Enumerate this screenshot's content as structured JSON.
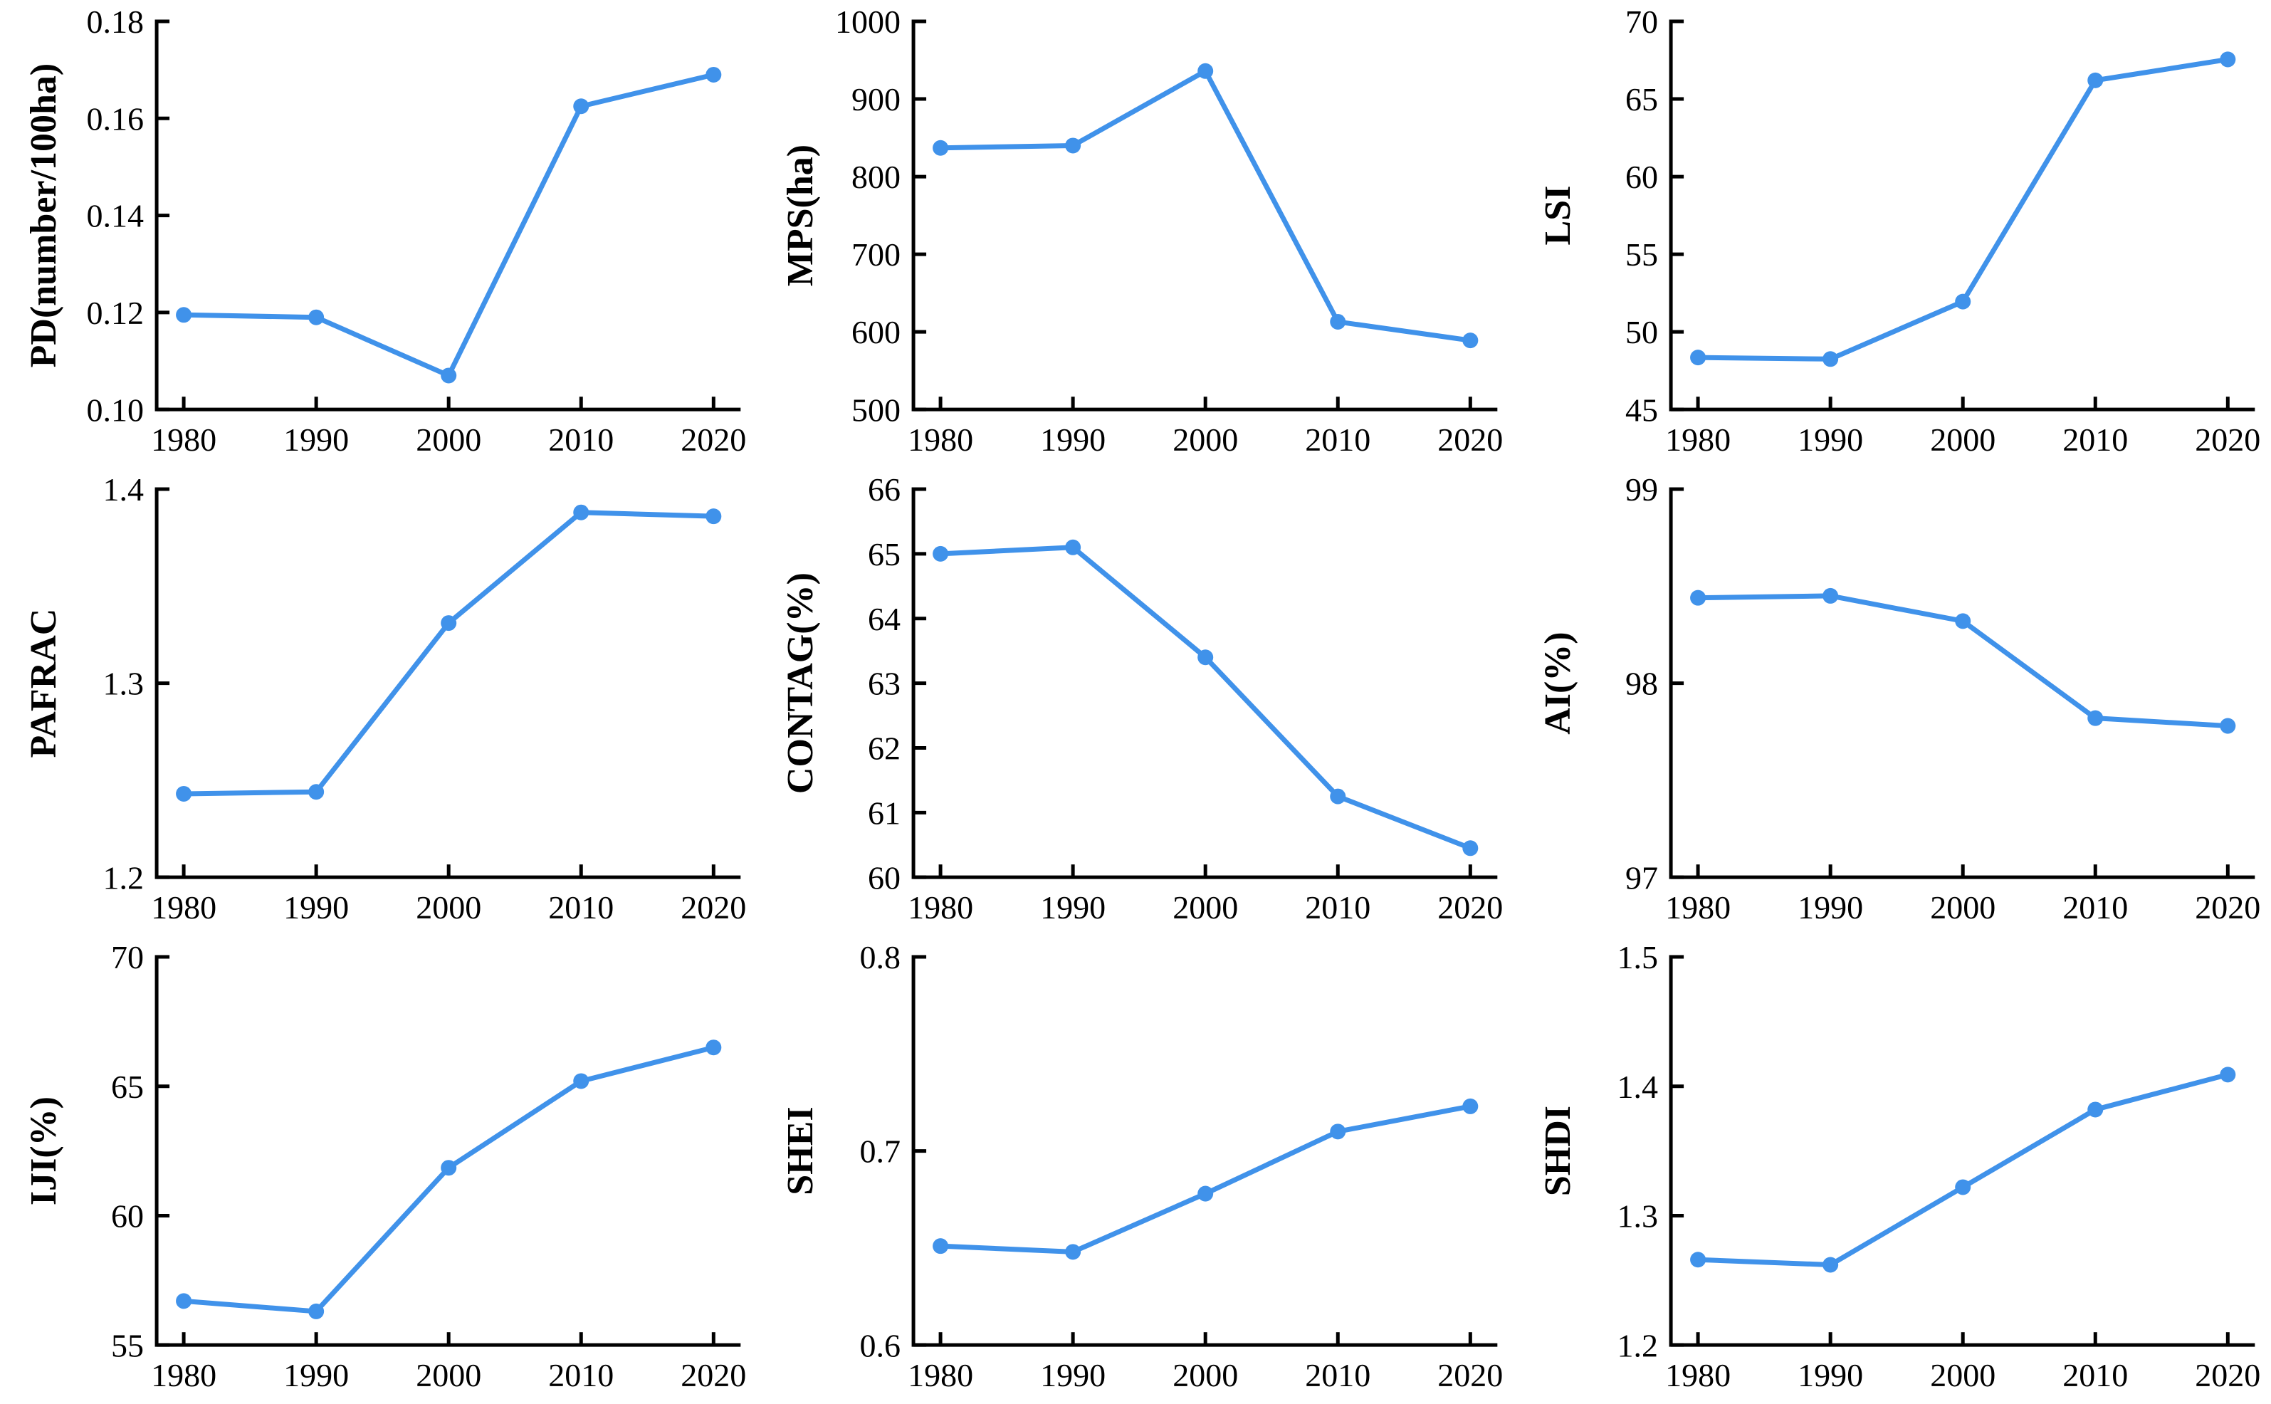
{
  "figure": {
    "description": "3x3 grid of landscape metric trend line charts, years 1980-2020",
    "rows": 3,
    "cols": 3
  },
  "colors": {
    "line": "#4092EA",
    "marker": "#4092EA",
    "axis": "#000000",
    "background": "#ffffff"
  },
  "chart_data": [
    {
      "type": "line",
      "ylabel": "PD(number/100ha)",
      "x": [
        1980,
        1990,
        2000,
        2010,
        2020
      ],
      "values": [
        0.1195,
        0.119,
        0.107,
        0.1625,
        0.169
      ],
      "ylim": [
        0.1,
        0.18
      ],
      "yticks": [
        0.1,
        0.12,
        0.14,
        0.16,
        0.18
      ],
      "ytick_labels": [
        "0.10",
        "0.12",
        "0.14",
        "0.16",
        "0.18"
      ],
      "xlabel": "",
      "grid": false,
      "legend": "none"
    },
    {
      "type": "line",
      "ylabel": "MPS(ha)",
      "x": [
        1980,
        1990,
        2000,
        2010,
        2020
      ],
      "values": [
        837,
        840,
        936,
        613,
        589
      ],
      "ylim": [
        500,
        1000
      ],
      "yticks": [
        500,
        600,
        700,
        800,
        900,
        1000
      ],
      "ytick_labels": [
        "500",
        "600",
        "700",
        "800",
        "900",
        "1000"
      ],
      "xlabel": "",
      "grid": false,
      "legend": "none"
    },
    {
      "type": "line",
      "ylabel": "LSI",
      "x": [
        1980,
        1990,
        2000,
        2010,
        2020
      ],
      "values": [
        48.35,
        48.25,
        51.95,
        66.2,
        67.55
      ],
      "ylim": [
        45,
        70
      ],
      "yticks": [
        45,
        50,
        55,
        60,
        65,
        70
      ],
      "ytick_labels": [
        "45",
        "50",
        "55",
        "60",
        "65",
        "70"
      ],
      "xlabel": "",
      "grid": false,
      "legend": "none"
    },
    {
      "type": "line",
      "ylabel": "PAFRAC",
      "x": [
        1980,
        1990,
        2000,
        2010,
        2020
      ],
      "values": [
        1.243,
        1.244,
        1.331,
        1.388,
        1.386
      ],
      "ylim": [
        1.2,
        1.4
      ],
      "yticks": [
        1.2,
        1.3,
        1.4
      ],
      "ytick_labels": [
        "1.2",
        "1.3",
        "1.4"
      ],
      "xlabel": "",
      "grid": false,
      "legend": "none"
    },
    {
      "type": "line",
      "ylabel": "CONTAG(%)",
      "x": [
        1980,
        1990,
        2000,
        2010,
        2020
      ],
      "values": [
        65.0,
        65.1,
        63.4,
        61.25,
        60.45
      ],
      "ylim": [
        60,
        66
      ],
      "yticks": [
        60,
        61,
        62,
        63,
        64,
        65,
        66
      ],
      "ytick_labels": [
        "60",
        "61",
        "62",
        "63",
        "64",
        "65",
        "66"
      ],
      "xlabel": "",
      "grid": false,
      "legend": "none"
    },
    {
      "type": "line",
      "ylabel": "AI(%)",
      "x": [
        1980,
        1990,
        2000,
        2010,
        2020
      ],
      "values": [
        98.44,
        98.45,
        98.32,
        97.82,
        97.78
      ],
      "ylim": [
        97,
        99
      ],
      "yticks": [
        97,
        98,
        99
      ],
      "ytick_labels": [
        "97",
        "98",
        "99"
      ],
      "xlabel": "",
      "grid": false,
      "legend": "none"
    },
    {
      "type": "line",
      "ylabel": "IJI(%)",
      "x": [
        1980,
        1990,
        2000,
        2010,
        2020
      ],
      "values": [
        56.7,
        56.3,
        61.85,
        65.2,
        66.5
      ],
      "ylim": [
        55,
        70
      ],
      "yticks": [
        55,
        60,
        65,
        70
      ],
      "ytick_labels": [
        "55",
        "60",
        "65",
        "70"
      ],
      "xlabel": "",
      "grid": false,
      "legend": "none"
    },
    {
      "type": "line",
      "ylabel": "SHEI",
      "x": [
        1980,
        1990,
        2000,
        2010,
        2020
      ],
      "values": [
        0.651,
        0.648,
        0.678,
        0.71,
        0.723
      ],
      "ylim": [
        0.6,
        0.8
      ],
      "yticks": [
        0.6,
        0.7,
        0.8
      ],
      "ytick_labels": [
        "0.6",
        "0.7",
        "0.8"
      ],
      "xlabel": "",
      "grid": false,
      "legend": "none"
    },
    {
      "type": "line",
      "ylabel": "SHDI",
      "x": [
        1980,
        1990,
        2000,
        2010,
        2020
      ],
      "values": [
        1.266,
        1.262,
        1.322,
        1.382,
        1.409
      ],
      "ylim": [
        1.2,
        1.5
      ],
      "yticks": [
        1.2,
        1.3,
        1.4,
        1.5
      ],
      "ytick_labels": [
        "1.2",
        "1.3",
        "1.4",
        "1.5"
      ],
      "xlabel": "",
      "grid": false,
      "legend": "none"
    }
  ]
}
